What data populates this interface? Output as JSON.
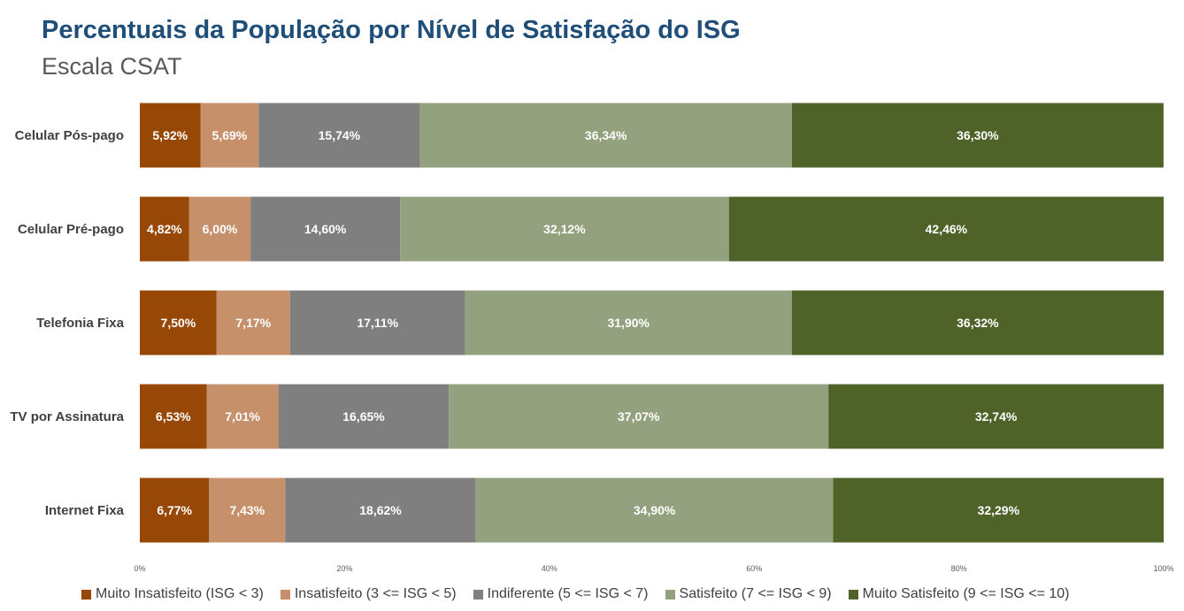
{
  "header": {
    "title": "Percentuais da População por Nível de Satisfação do ISG",
    "subtitle": "Escala CSAT"
  },
  "chart_data": {
    "type": "bar",
    "orientation": "horizontal",
    "stacked": true,
    "title": "Percentuais da População por Nível de Satisfação do ISG",
    "subtitle": "Escala CSAT",
    "categories": [
      "Celular Pós-pago",
      "Celular Pré-pago",
      "Telefonia Fixa",
      "TV por Assinatura",
      "Internet Fixa"
    ],
    "series": [
      {
        "name": "Muito Insatisfeito (ISG < 3)",
        "color": "#974706",
        "values": [
          5.92,
          4.82,
          7.5,
          6.53,
          6.77
        ],
        "labels": [
          "5,92%",
          "4,82%",
          "7,50%",
          "6,53%",
          "6,77%"
        ]
      },
      {
        "name": "Insatisfeito (3 <= ISG < 5)",
        "color": "#c5906a",
        "values": [
          5.69,
          6.0,
          7.17,
          7.01,
          7.43
        ],
        "labels": [
          "5,69%",
          "6,00%",
          "7,17%",
          "7,01%",
          "7,43%"
        ]
      },
      {
        "name": "Indiferente (5 <= ISG < 7)",
        "color": "#7f7f7f",
        "values": [
          15.74,
          14.6,
          17.11,
          16.65,
          18.62
        ],
        "labels": [
          "15,74%",
          "14,60%",
          "17,11%",
          "16,65%",
          "18,62%"
        ]
      },
      {
        "name": "Satisfeito (7 <= ISG < 9)",
        "color": "#94a17e",
        "values": [
          36.34,
          32.12,
          31.9,
          37.07,
          34.9
        ],
        "labels": [
          "36,34%",
          "32,12%",
          "31,90%",
          "37,07%",
          "34,90%"
        ]
      },
      {
        "name": "Muito Satisfeito (9 <= ISG <= 10)",
        "color": "#4f6228",
        "values": [
          36.3,
          42.46,
          36.32,
          32.74,
          32.29
        ],
        "labels": [
          "36,30%",
          "42,46%",
          "36,32%",
          "32,74%",
          "32,29%"
        ]
      }
    ],
    "xlim": [
      0,
      100
    ],
    "x_ticks": [
      0,
      20,
      40,
      60,
      80,
      100
    ],
    "x_tick_labels": [
      "0%",
      "20%",
      "40%",
      "60%",
      "80%",
      "100%"
    ],
    "grid": false,
    "legend_position": "bottom"
  }
}
